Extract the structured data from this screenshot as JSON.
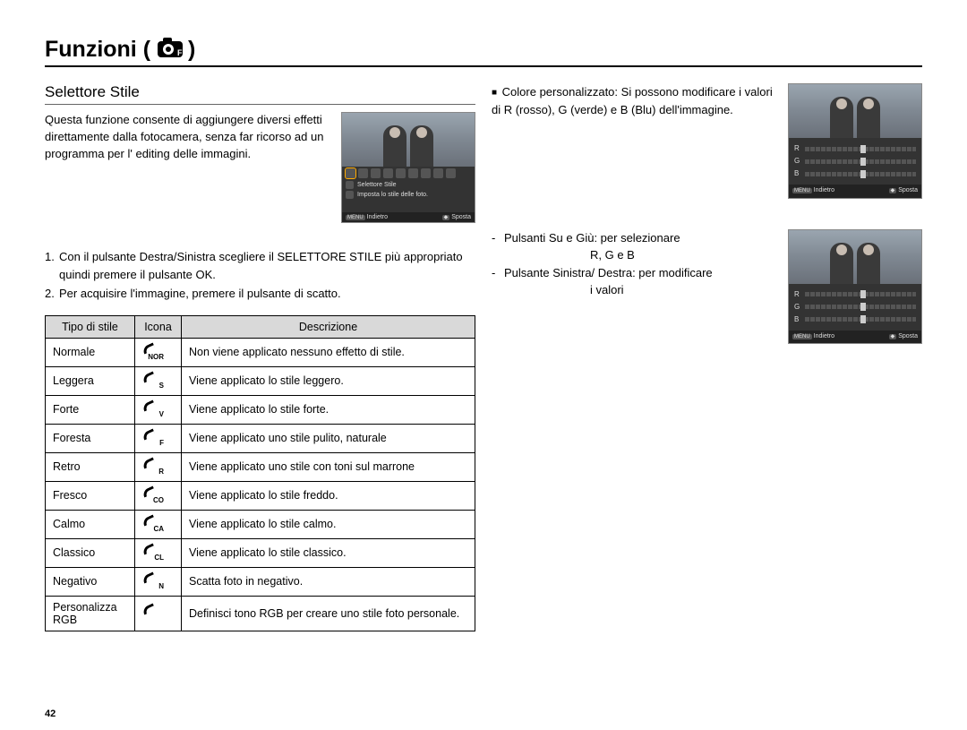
{
  "title": "Funzioni (",
  "title_close": ")",
  "page_number": "42",
  "subhead": "Selettore Stile",
  "intro": "Questa funzione consente di aggiungere diversi effetti direttamente dalla fotocamera, senza far ricorso ad un programma per l' editing delle immagini.",
  "steps": [
    {
      "n": "1.",
      "t": "Con il pulsante Destra/Sinistra scegliere il SELETTORE STILE più appropriato quindi premere il pulsante OK."
    },
    {
      "n": "2.",
      "t": "Per acquisire l'immagine, premere il pulsante di scatto."
    }
  ],
  "table": {
    "headers": [
      "Tipo di stile",
      "Icona",
      "Descrizione"
    ],
    "rows": [
      {
        "type": "Normale",
        "sub": "NOR",
        "desc": "Non viene applicato nessuno effetto di stile."
      },
      {
        "type": "Leggera",
        "sub": "S",
        "desc": "Viene applicato lo stile leggero."
      },
      {
        "type": "Forte",
        "sub": "V",
        "desc": "Viene applicato lo stile forte."
      },
      {
        "type": "Foresta",
        "sub": "F",
        "desc": "Viene applicato uno stile pulito, naturale"
      },
      {
        "type": "Retro",
        "sub": "R",
        "desc": "Viene applicato uno stile con toni sul marrone"
      },
      {
        "type": "Fresco",
        "sub": "CO",
        "desc": "Viene applicato lo stile freddo."
      },
      {
        "type": "Calmo",
        "sub": "CA",
        "desc": "Viene applicato lo stile calmo."
      },
      {
        "type": "Classico",
        "sub": "CL",
        "desc": "Viene applicato lo stile classico."
      },
      {
        "type": "Negativo",
        "sub": "N",
        "desc": "Scatta foto in negativo."
      },
      {
        "type": "Personalizza RGB",
        "sub": "",
        "desc": "Definisci tono RGB per creare uno stile foto personale."
      }
    ]
  },
  "custom_color": {
    "label": "Colore personalizzato:",
    "desc": "Si possono modificare i valori di R (rosso), G (verde) e B (Blu) dell'immagine."
  },
  "controls": {
    "l1a": "Pulsanti Su e Giù: per selezionare",
    "l1b": "R, G e B",
    "l2a": "Pulsante Sinistra/ Destra: per modificare",
    "l2b": "i valori"
  },
  "lcd": {
    "title1": "Selettore Stile",
    "title2": "Imposta lo stile delle foto.",
    "back_btn": "MENU",
    "back_lbl": "Indietro",
    "move_btn": "◆",
    "move_lbl": "Sposta",
    "sliders": [
      "R",
      "G",
      "B"
    ]
  }
}
